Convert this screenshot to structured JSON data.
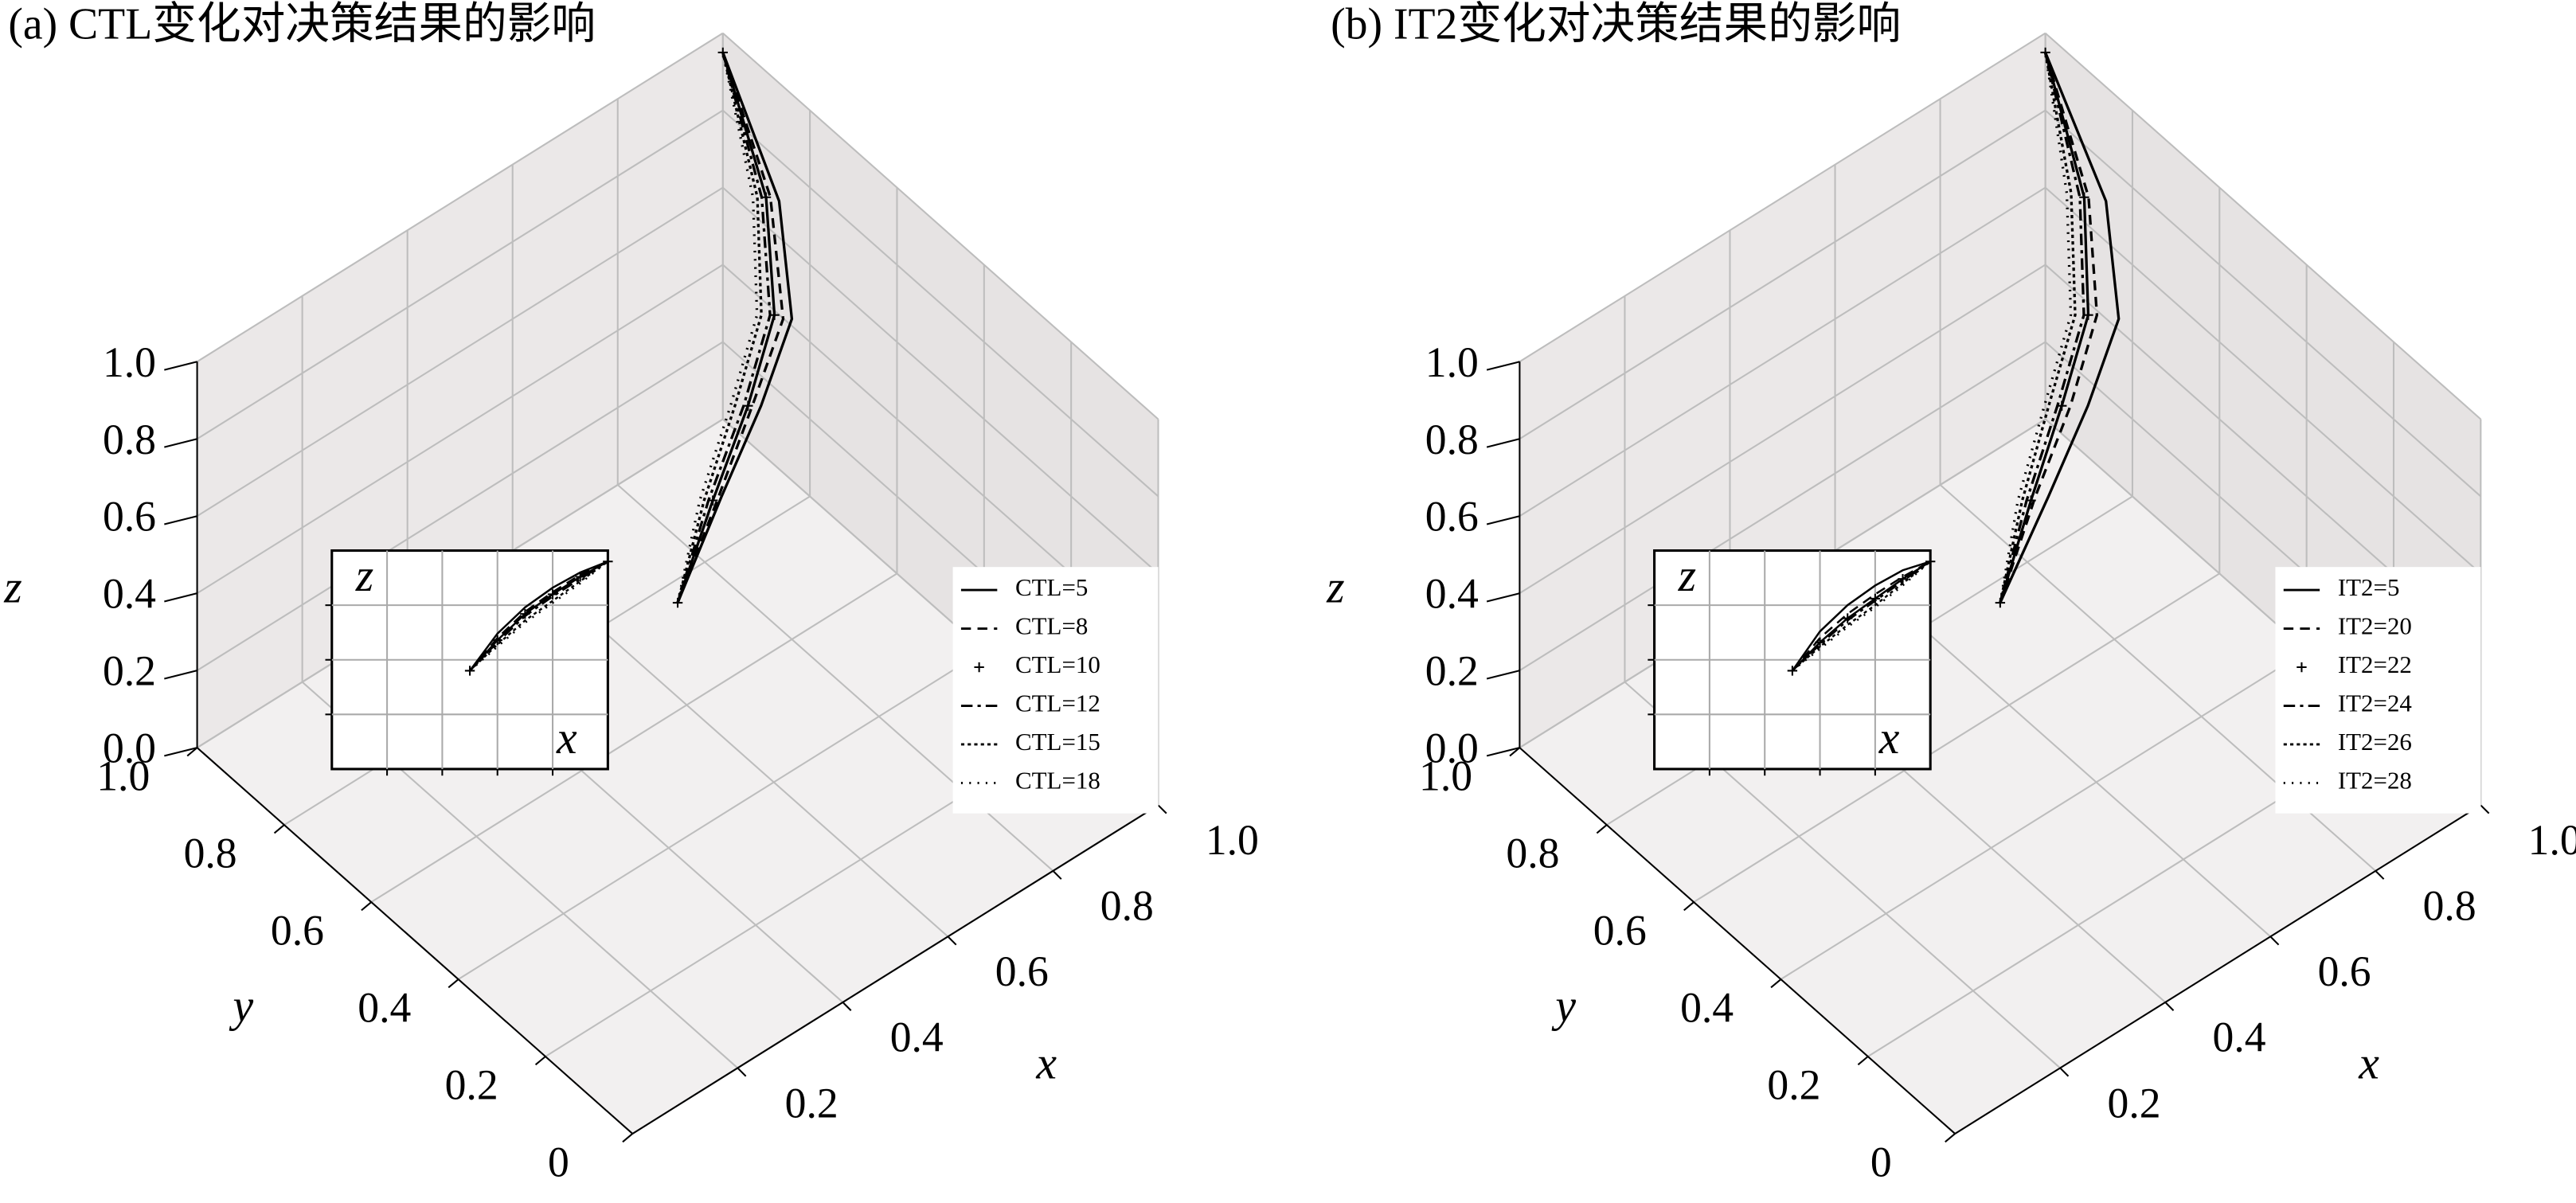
{
  "chart_data": [
    {
      "type": "line3d",
      "title": "(a) CTL变化对决策结果的影响",
      "xlabel": "x",
      "ylabel": "y",
      "zlabel": "z",
      "inset_xlabel": "x",
      "inset_zlabel": "z",
      "xlim": [
        0,
        1
      ],
      "ylim": [
        0,
        1
      ],
      "zlim": [
        0,
        1
      ],
      "xticks": [
        0.2,
        0.4,
        0.6,
        0.8,
        {
          "value": 1.0,
          "label": "1.0"
        }
      ],
      "yticks": [
        0,
        0.2,
        0.4,
        0.6,
        0.8,
        {
          "value": 1.0,
          "label": "1.0"
        }
      ],
      "zticks": [
        {
          "value": 0.0,
          "label": "0.0"
        },
        0.2,
        0.4,
        0.6,
        0.8,
        {
          "value": 1.0,
          "label": "1.0"
        }
      ],
      "grid": true,
      "series": [
        {
          "name": "CTL=5",
          "color": "#000000",
          "style": "solid",
          "x": [
            0.5,
            0.6,
            0.7,
            0.8,
            0.9,
            1.0
          ],
          "y": [
            0.5,
            0.52,
            0.55,
            0.6,
            0.75,
            1.0
          ],
          "z": [
            0.45,
            0.62,
            0.74,
            0.83,
            0.9,
            0.95
          ]
        },
        {
          "name": "CTL=8",
          "color": "#000000",
          "style": "dashed",
          "x": [
            0.5,
            0.6,
            0.7,
            0.8,
            0.9,
            1.0
          ],
          "y": [
            0.5,
            0.53,
            0.57,
            0.62,
            0.77,
            1.0
          ],
          "z": [
            0.45,
            0.6,
            0.72,
            0.81,
            0.89,
            0.95
          ]
        },
        {
          "name": "CTL=10",
          "color": "#000000",
          "style": "plus",
          "x": [
            0.5,
            0.6,
            0.7,
            0.8,
            0.9,
            1.0
          ],
          "y": [
            0.5,
            0.54,
            0.58,
            0.64,
            0.78,
            1.0
          ],
          "z": [
            0.45,
            0.59,
            0.71,
            0.8,
            0.88,
            0.95
          ]
        },
        {
          "name": "CTL=12",
          "color": "#000000",
          "style": "dashdot",
          "x": [
            0.5,
            0.6,
            0.7,
            0.8,
            0.9,
            1.0
          ],
          "y": [
            0.5,
            0.55,
            0.59,
            0.65,
            0.79,
            1.0
          ],
          "z": [
            0.45,
            0.58,
            0.7,
            0.79,
            0.87,
            0.95
          ]
        },
        {
          "name": "CTL=15",
          "color": "#000000",
          "style": "dotted",
          "x": [
            0.5,
            0.6,
            0.7,
            0.8,
            0.9,
            1.0
          ],
          "y": [
            0.5,
            0.56,
            0.61,
            0.67,
            0.8,
            1.0
          ],
          "z": [
            0.45,
            0.57,
            0.68,
            0.77,
            0.86,
            0.95
          ]
        },
        {
          "name": "CTL=18",
          "color": "#000000",
          "style": "points",
          "x": [
            0.5,
            0.6,
            0.7,
            0.8,
            0.9,
            1.0
          ],
          "y": [
            0.5,
            0.57,
            0.62,
            0.68,
            0.81,
            1.0
          ],
          "z": [
            0.45,
            0.56,
            0.67,
            0.76,
            0.85,
            0.95
          ]
        }
      ]
    },
    {
      "type": "line3d",
      "title": "(b) IT2变化对决策结果的影响",
      "xlabel": "x",
      "ylabel": "y",
      "zlabel": "z",
      "inset_xlabel": "x",
      "inset_zlabel": "z",
      "xlim": [
        0,
        1
      ],
      "ylim": [
        0,
        1
      ],
      "zlim": [
        0,
        1
      ],
      "xticks": [
        0.2,
        0.4,
        0.6,
        0.8,
        {
          "value": 1.0,
          "label": "1.0"
        }
      ],
      "yticks": [
        0,
        0.2,
        0.4,
        0.6,
        0.8,
        {
          "value": 1.0,
          "label": "1.0"
        }
      ],
      "zticks": [
        {
          "value": 0.0,
          "label": "0.0"
        },
        0.2,
        0.4,
        0.6,
        0.8,
        {
          "value": 1.0,
          "label": "1.0"
        }
      ],
      "grid": true,
      "series": [
        {
          "name": "IT2=5",
          "color": "#000000",
          "style": "solid",
          "x": [
            0.5,
            0.6,
            0.7,
            0.8,
            0.9,
            1.0
          ],
          "y": [
            0.5,
            0.51,
            0.54,
            0.59,
            0.74,
            1.0
          ],
          "z": [
            0.45,
            0.63,
            0.75,
            0.84,
            0.91,
            0.95
          ]
        },
        {
          "name": "IT2=20",
          "color": "#000000",
          "style": "dashed",
          "x": [
            0.5,
            0.6,
            0.7,
            0.8,
            0.9,
            1.0
          ],
          "y": [
            0.5,
            0.54,
            0.58,
            0.64,
            0.78,
            1.0
          ],
          "z": [
            0.45,
            0.6,
            0.71,
            0.8,
            0.88,
            0.95
          ]
        },
        {
          "name": "IT2=22",
          "color": "#000000",
          "style": "plus",
          "x": [
            0.5,
            0.6,
            0.7,
            0.8,
            0.9,
            1.0
          ],
          "y": [
            0.5,
            0.55,
            0.6,
            0.66,
            0.79,
            1.0
          ],
          "z": [
            0.45,
            0.58,
            0.69,
            0.78,
            0.87,
            0.95
          ]
        },
        {
          "name": "IT2=24",
          "color": "#000000",
          "style": "dashdot",
          "x": [
            0.5,
            0.6,
            0.7,
            0.8,
            0.9,
            1.0
          ],
          "y": [
            0.5,
            0.56,
            0.61,
            0.67,
            0.8,
            1.0
          ],
          "z": [
            0.45,
            0.57,
            0.68,
            0.77,
            0.86,
            0.95
          ]
        },
        {
          "name": "IT2=26",
          "color": "#000000",
          "style": "dotted",
          "x": [
            0.5,
            0.6,
            0.7,
            0.8,
            0.9,
            1.0
          ],
          "y": [
            0.5,
            0.57,
            0.63,
            0.69,
            0.82,
            1.0
          ],
          "z": [
            0.45,
            0.56,
            0.66,
            0.75,
            0.85,
            0.95
          ]
        },
        {
          "name": "IT2=28",
          "color": "#000000",
          "style": "points",
          "x": [
            0.5,
            0.6,
            0.7,
            0.8,
            0.9,
            1.0
          ],
          "y": [
            0.5,
            0.58,
            0.64,
            0.7,
            0.83,
            1.0
          ],
          "z": [
            0.45,
            0.55,
            0.65,
            0.74,
            0.84,
            0.95
          ]
        }
      ]
    }
  ]
}
